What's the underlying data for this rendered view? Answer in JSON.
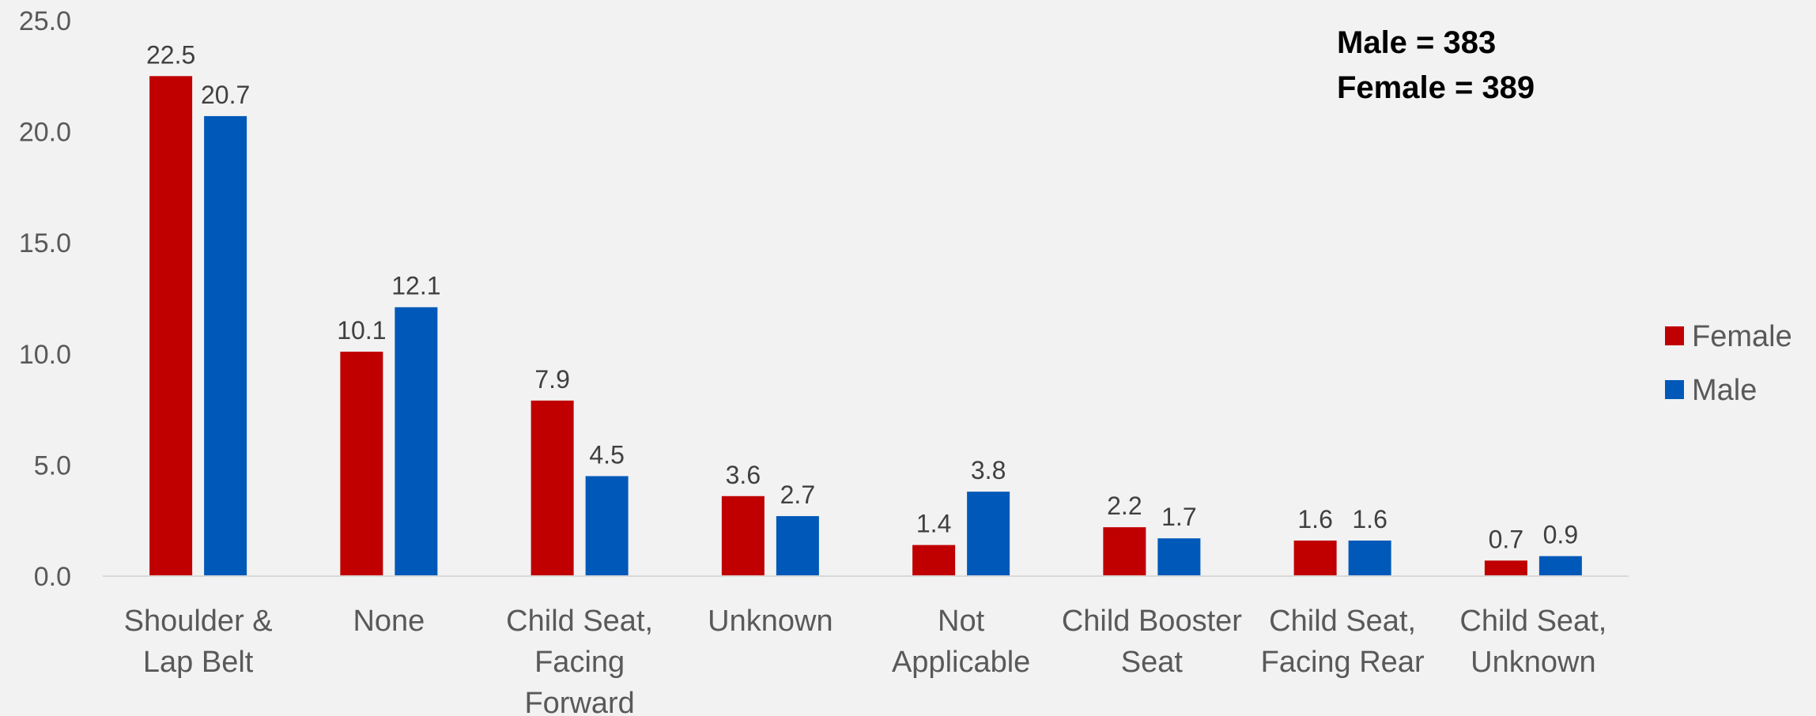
{
  "chart_data": {
    "type": "bar",
    "categories": [
      [
        "Shoulder &",
        "Lap Belt"
      ],
      [
        "None"
      ],
      [
        "Child Seat,",
        "Facing",
        "Forward"
      ],
      [
        "Unknown"
      ],
      [
        "Not",
        "Applicable"
      ],
      [
        "Child Booster",
        "Seat"
      ],
      [
        "Child Seat,",
        "Facing Rear"
      ],
      [
        "Child Seat,",
        "Unknown"
      ]
    ],
    "series": [
      {
        "name": "Female",
        "color": "#c00000",
        "values": [
          22.5,
          10.1,
          7.9,
          3.6,
          1.4,
          2.2,
          1.6,
          0.7
        ],
        "labels": [
          "22.5",
          "10.1",
          "7.9",
          "3.6",
          "1.4",
          "2.2",
          "1.6",
          "0.7"
        ]
      },
      {
        "name": "Male",
        "color": "#0059b8",
        "values": [
          20.7,
          12.1,
          4.5,
          2.7,
          3.8,
          1.7,
          1.6,
          0.9
        ],
        "labels": [
          "20.7",
          "12.1",
          "4.5",
          "2.7",
          "3.8",
          "1.7",
          "1.6",
          "0.9"
        ]
      }
    ],
    "ylim": [
      0,
      25
    ],
    "yticks": [
      "0.0",
      "5.0",
      "10.0",
      "15.0",
      "20.0",
      "25.0"
    ],
    "ytick_values": [
      0,
      5,
      10,
      15,
      20,
      25
    ],
    "grid": false,
    "legend_position": "right",
    "annotation": [
      "Male = 383",
      "Female = 389"
    ]
  }
}
